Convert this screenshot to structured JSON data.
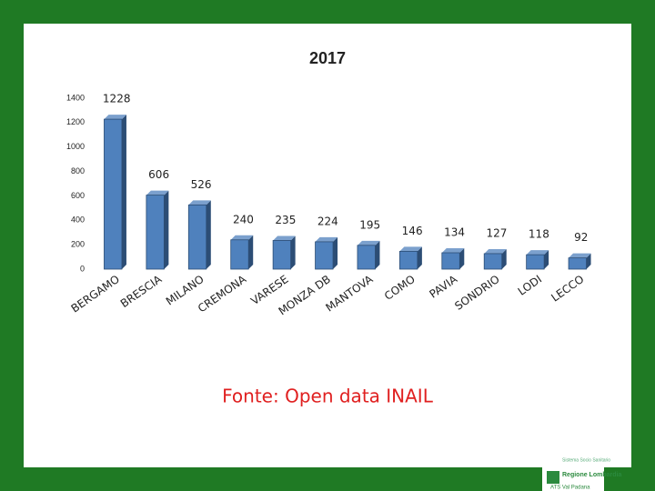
{
  "chart_data": {
    "type": "bar3d",
    "title": "2017",
    "categories": [
      "BERGAMO",
      "BRESCIA",
      "MILANO",
      "CREMONA",
      "VARESE",
      "MONZA DB",
      "MANTOVA",
      "COMO",
      "PAVIA",
      "SONDRIO",
      "LODI",
      "LECCO"
    ],
    "values": [
      1228,
      606,
      526,
      240,
      235,
      224,
      195,
      146,
      134,
      127,
      118,
      92
    ],
    "color": "#4f81bd",
    "ylim": [
      0,
      1400
    ],
    "yticks": [
      0,
      200,
      400,
      600,
      800,
      1000,
      1200,
      1400
    ],
    "grid": false,
    "source": "Fonte: Open data INAIL"
  },
  "logo": {
    "line1": "Sistema Socio Sanitario",
    "line2": "Regione Lombardia",
    "line3": "ATS Val Padana"
  }
}
